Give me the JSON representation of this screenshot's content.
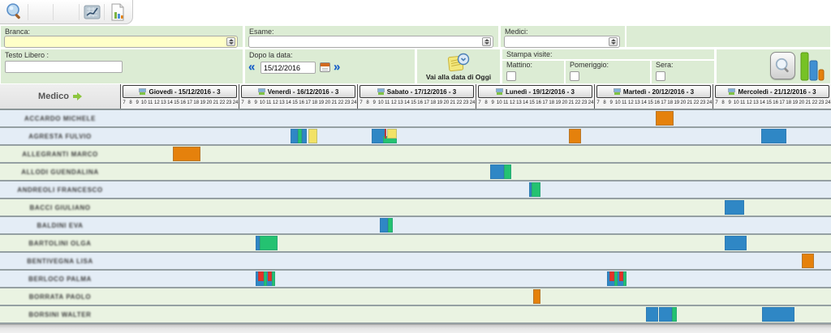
{
  "toolbar": {
    "buttons": [
      "search",
      "",
      "",
      "chart",
      "report"
    ]
  },
  "filters": {
    "branca_label": "Branca:",
    "branca_value": "",
    "esame_label": "Esame:",
    "esame_value": "",
    "medici_label": "Medici:",
    "medici_value": "",
    "testo_libero_label": "Testo Libero :",
    "testo_libero_value": "",
    "dopo_la_data_label": "Dopo la data:",
    "date_value": "15/12/2016",
    "goto_today_label": "Vai alla data di Oggi",
    "stampa_visite_label": "Stampa visite:",
    "mattino_label": "Mattino:",
    "mattino_checked": false,
    "pomeriggio_label": "Pomeriggio:",
    "pomeriggio_checked": false,
    "sera_label": "Sera:",
    "sera_checked": false
  },
  "schedule": {
    "medico_header": "Medico",
    "hours": [
      "7",
      "8",
      "9",
      "10",
      "11",
      "12",
      "13",
      "14",
      "15",
      "16",
      "17",
      "18",
      "19",
      "20",
      "21",
      "22",
      "23",
      "24"
    ],
    "days": [
      "Giovedì - 15/12/2016 - 3",
      "Venerdì - 16/12/2016 - 3",
      "Sabato - 17/12/2016 - 3",
      "Lunedì - 19/12/2016 - 3",
      "Martedì - 20/12/2016 - 3",
      "Mercoledì - 21/12/2016 - 3"
    ],
    "rows": [
      {
        "name": "ACCARDO MICHELE",
        "tint": "blue",
        "blocks": [
          {
            "d": 4,
            "h0": 16.4,
            "h1": 19.1,
            "c": "orange"
          }
        ]
      },
      {
        "name": "AGRESTA FULVIO",
        "tint": "blue",
        "blocks": [
          {
            "d": 1,
            "h0": 14.9,
            "h1": 16.0,
            "c": "blue"
          },
          {
            "d": 1,
            "h0": 16.0,
            "h1": 16.6,
            "c": "green"
          },
          {
            "d": 1,
            "h0": 16.6,
            "h1": 17.4,
            "c": "blue"
          },
          {
            "d": 1,
            "h0": 17.6,
            "h1": 19.0,
            "c": "yellow"
          },
          {
            "d": 2,
            "h0": 9.2,
            "h1": 11.2,
            "c": "blue"
          },
          {
            "d": 2,
            "h0": 11.0,
            "h1": 13.0,
            "c": "green",
            "v": "bottom"
          },
          {
            "d": 2,
            "h0": 11.2,
            "h1": 11.5,
            "c": "red",
            "v": "top"
          },
          {
            "d": 2,
            "h0": 11.5,
            "h1": 13.0,
            "c": "yellow",
            "v": "top"
          },
          {
            "d": 3,
            "h0": 21.2,
            "h1": 23.0,
            "c": "orange"
          },
          {
            "d": 5,
            "h0": 14.4,
            "h1": 18.2,
            "c": "blue"
          }
        ]
      },
      {
        "name": "ALLEGRANTI MARCO",
        "tint": "green",
        "blocks": [
          {
            "d": 0,
            "h0": 15.0,
            "h1": 19.2,
            "c": "orange"
          }
        ]
      },
      {
        "name": "ALLODI GUENDALINA",
        "tint": "green",
        "blocks": [
          {
            "d": 3,
            "h0": 9.2,
            "h1": 11.3,
            "c": "blue"
          },
          {
            "d": 3,
            "h0": 11.3,
            "h1": 12.4,
            "c": "green"
          }
        ]
      },
      {
        "name": "ANDREOLI FRANCESCO",
        "tint": "blue",
        "blocks": [
          {
            "d": 3,
            "h0": 15.1,
            "h1": 15.5,
            "c": "blue"
          },
          {
            "d": 3,
            "h0": 15.5,
            "h1": 16.9,
            "c": "green"
          }
        ]
      },
      {
        "name": "BACCI GIULIANO",
        "tint": "green",
        "blocks": [
          {
            "d": 5,
            "h0": 8.85,
            "h1": 11.8,
            "c": "blue"
          }
        ]
      },
      {
        "name": "BALDINI EVA",
        "tint": "blue",
        "blocks": [
          {
            "d": 2,
            "h0": 10.4,
            "h1": 11.7,
            "c": "blue"
          },
          {
            "d": 2,
            "h0": 11.7,
            "h1": 12.4,
            "c": "green"
          }
        ]
      },
      {
        "name": "BARTOLINI OLGA",
        "tint": "green",
        "blocks": [
          {
            "d": 1,
            "h0": 9.6,
            "h1": 10.2,
            "c": "blue"
          },
          {
            "d": 1,
            "h0": 10.2,
            "h1": 12.9,
            "c": "green"
          },
          {
            "d": 5,
            "h0": 8.85,
            "h1": 12.2,
            "c": "blue"
          }
        ]
      },
      {
        "name": "BENTIVEGNA LISA",
        "tint": "blue",
        "blocks": [
          {
            "d": 5,
            "h0": 20.6,
            "h1": 22.4,
            "c": "orange"
          }
        ]
      },
      {
        "name": "BERLOCO PALMA",
        "tint": "blue",
        "blocks": [
          {
            "d": 1,
            "h0": 9.6,
            "h1": 12.4,
            "c": "blue"
          },
          {
            "d": 1,
            "h0": 10.8,
            "h1": 11.3,
            "c": "green"
          },
          {
            "d": 1,
            "h0": 12.1,
            "h1": 12.5,
            "c": "green"
          },
          {
            "d": 1,
            "h0": 10.0,
            "h1": 10.8,
            "c": "red",
            "v": "top"
          },
          {
            "d": 1,
            "h0": 11.4,
            "h1": 12.1,
            "c": "red",
            "v": "top"
          },
          {
            "d": 4,
            "h0": 9.0,
            "h1": 12.0,
            "c": "blue"
          },
          {
            "d": 4,
            "h0": 10.1,
            "h1": 10.6,
            "c": "green"
          },
          {
            "d": 4,
            "h0": 11.4,
            "h1": 11.9,
            "c": "green"
          },
          {
            "d": 4,
            "h0": 9.3,
            "h1": 10.1,
            "c": "red",
            "v": "top"
          },
          {
            "d": 4,
            "h0": 10.8,
            "h1": 11.4,
            "c": "red",
            "v": "top"
          }
        ]
      },
      {
        "name": "BORRATA PAOLO",
        "tint": "green",
        "blocks": [
          {
            "d": 3,
            "h0": 15.7,
            "h1": 16.9,
            "c": "orange"
          }
        ]
      },
      {
        "name": "BORSINI WALTER",
        "tint": "green",
        "blocks": [
          {
            "d": 4,
            "h0": 14.9,
            "h1": 16.8,
            "c": "blue"
          },
          {
            "d": 4,
            "h0": 16.9,
            "h1": 18.8,
            "c": "blue"
          },
          {
            "d": 4,
            "h0": 18.8,
            "h1": 19.6,
            "c": "green"
          },
          {
            "d": 5,
            "h0": 14.5,
            "h1": 19.5,
            "c": "blue"
          }
        ]
      }
    ]
  },
  "colors": {
    "blue": "#2f87c5",
    "green": "#24c271",
    "orange": "#e5810c",
    "yellow": "#f2e266",
    "red": "#e93025",
    "panel_green": "#dcecd4",
    "row_blue": "#e4edf6",
    "row_green": "#eaf3e2"
  }
}
